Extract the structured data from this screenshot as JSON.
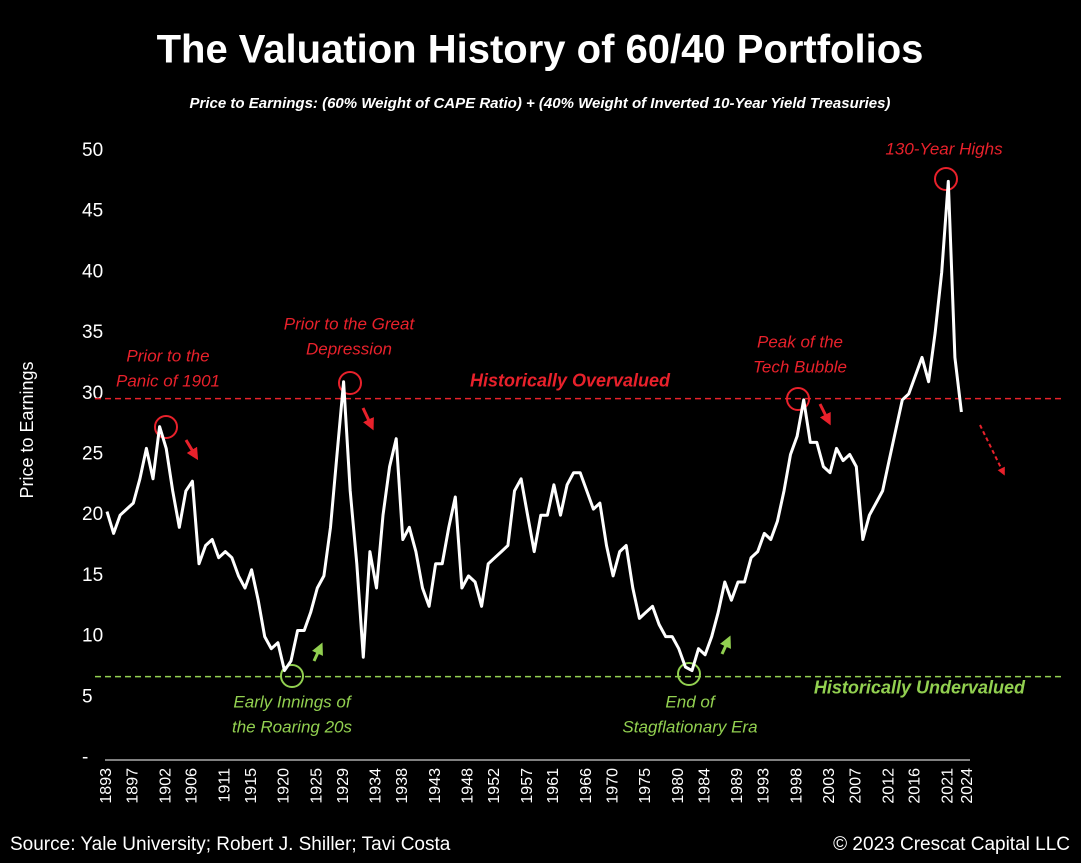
{
  "chart_data": {
    "type": "line",
    "title": "The Valuation History of 60/40 Portfolios",
    "subtitle": "Price to Earnings: (60% Weight of CAPE Ratio) + (40% Weight of Inverted 10-Year Yield Treasuries)",
    "y_label": "Price to Earnings",
    "source": "Source: Yale University; Robert J. Shiller; Tavi Costa",
    "copyright": "© 2023 Crescat Capital LLC",
    "color": "#ffffff",
    "x": [
      1893,
      1894,
      1895,
      1896,
      1897,
      1898,
      1899,
      1900,
      1901,
      1902,
      1903,
      1904,
      1905,
      1906,
      1907,
      1908,
      1909,
      1910,
      1911,
      1912,
      1913,
      1914,
      1915,
      1916,
      1917,
      1918,
      1919,
      1920,
      1921,
      1922,
      1923,
      1924,
      1925,
      1926,
      1927,
      1928,
      1929,
      1930,
      1931,
      1932,
      1933,
      1934,
      1935,
      1936,
      1937,
      1938,
      1939,
      1940,
      1941,
      1942,
      1943,
      1944,
      1945,
      1946,
      1947,
      1948,
      1949,
      1950,
      1951,
      1952,
      1953,
      1954,
      1955,
      1956,
      1957,
      1958,
      1959,
      1960,
      1961,
      1962,
      1963,
      1964,
      1965,
      1966,
      1967,
      1968,
      1969,
      1970,
      1971,
      1972,
      1973,
      1974,
      1975,
      1976,
      1977,
      1978,
      1979,
      1980,
      1981,
      1982,
      1983,
      1984,
      1985,
      1986,
      1987,
      1988,
      1989,
      1990,
      1991,
      1992,
      1993,
      1994,
      1995,
      1996,
      1997,
      1998,
      1999,
      2000,
      2001,
      2002,
      2003,
      2004,
      2005,
      2006,
      2007,
      2008,
      2009,
      2010,
      2011,
      2012,
      2013,
      2014,
      2015,
      2016,
      2017,
      2018,
      2019,
      2020,
      2021,
      2022,
      2023
    ],
    "values": [
      20.3,
      18.5,
      20,
      20.5,
      21,
      23,
      25.5,
      23,
      27.3,
      25.5,
      22,
      19,
      22,
      22.8,
      16,
      17.5,
      18,
      16.5,
      17,
      16.5,
      15,
      14,
      15.5,
      13,
      10,
      9,
      9.5,
      7.2,
      8,
      10.5,
      10.5,
      12,
      14,
      15,
      19,
      25,
      31,
      22,
      16,
      8.3,
      17,
      14,
      20,
      24,
      26.3,
      18,
      19,
      17,
      14,
      12.5,
      16,
      16,
      19,
      21.5,
      14,
      15,
      14.5,
      12.5,
      16,
      16.5,
      17,
      17.5,
      22,
      23,
      20,
      17,
      20,
      20,
      22.5,
      20,
      22.5,
      23.5,
      23.5,
      22,
      20.5,
      21,
      17.5,
      15,
      17,
      17.5,
      14,
      11.5,
      12,
      12.5,
      11,
      10,
      10,
      9,
      7.5,
      7.2,
      9,
      8.5,
      10,
      12,
      14.5,
      13,
      14.5,
      14.5,
      16.5,
      17,
      18.5,
      18,
      19.5,
      22,
      25,
      26.5,
      29.5,
      26,
      26,
      24,
      23.5,
      25.5,
      24.5,
      25,
      24,
      18,
      20,
      21,
      22,
      24.5,
      27,
      29.5,
      30,
      31.5,
      33,
      31,
      35,
      40,
      47.5,
      33,
      28.5
    ],
    "xlim": [
      1893,
      2024
    ],
    "xticks": [
      1893,
      1897,
      1902,
      1906,
      1911,
      1915,
      1920,
      1925,
      1929,
      1934,
      1938,
      1943,
      1948,
      1952,
      1957,
      1961,
      1966,
      1970,
      1975,
      1980,
      1984,
      1989,
      1993,
      1998,
      2003,
      2007,
      2012,
      2016,
      2021,
      2024
    ],
    "ylim": [
      0,
      50
    ],
    "yticks": [
      {
        "value": 0,
        "label": "-"
      },
      5,
      10,
      15,
      20,
      25,
      30,
      35,
      40,
      45,
      50
    ],
    "reference_lines": [
      {
        "value": 29.6,
        "label": "Historically Overvalued",
        "color": "#e8212b"
      },
      {
        "value": 6.7,
        "label": "Historically Undervalued",
        "color": "#92d050"
      }
    ],
    "annotations": [
      {
        "text": [
          "Prior to the",
          "Panic of 1901"
        ],
        "color": "#e8212b"
      },
      {
        "text": [
          "Prior to the Great",
          "Depression"
        ],
        "color": "#e8212b"
      },
      {
        "text": [
          "Peak of the",
          "Tech Bubble"
        ],
        "color": "#e8212b"
      },
      {
        "text": [
          "130-Year Highs"
        ],
        "color": "#e8212b"
      },
      {
        "text": [
          "Early Innings of",
          "the Roaring 20s"
        ],
        "color": "#92d050"
      },
      {
        "text": [
          "End of",
          "Stagflationary Era"
        ],
        "color": "#92d050"
      }
    ]
  }
}
